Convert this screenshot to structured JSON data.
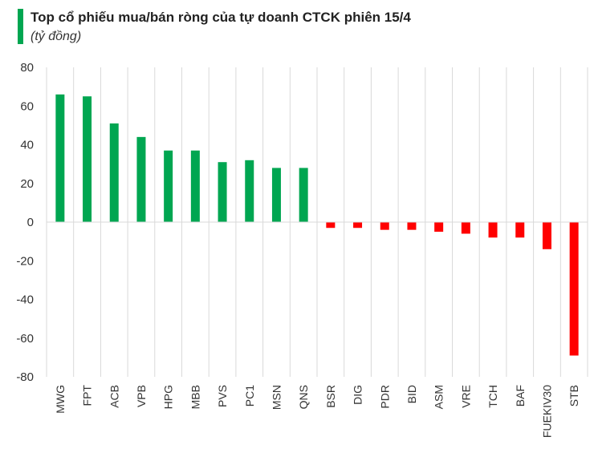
{
  "header": {
    "title": "Top cổ phiếu mua/bán ròng của tự doanh CTCK phiên 15/4",
    "subtitle": "(tỷ đồng)"
  },
  "colors": {
    "positive": "#00a651",
    "negative": "#ff0000",
    "accent": "#00a651",
    "grid": "#d9d9d9"
  },
  "chart_data": {
    "type": "bar",
    "title": "Top cổ phiếu mua/bán ròng của tự doanh CTCK phiên 15/4",
    "subtitle": "(tỷ đồng)",
    "xlabel": "",
    "ylabel": "",
    "ylim": [
      -80,
      80
    ],
    "yticks": [
      80,
      60,
      40,
      20,
      0,
      -20,
      -40,
      -60,
      -80
    ],
    "grid": "vertical category gridlines",
    "legend": "none",
    "categories": [
      "MWG",
      "FPT",
      "ACB",
      "VPB",
      "HPG",
      "MBB",
      "PVS",
      "PC1",
      "MSN",
      "QNS",
      "BSR",
      "DIG",
      "PDR",
      "BID",
      "ASM",
      "VRE",
      "TCH",
      "BAF",
      "FUEKIV30",
      "STB"
    ],
    "values": [
      66,
      65,
      51,
      44,
      37,
      37,
      31,
      32,
      28,
      28,
      -3,
      -3,
      -4,
      -4,
      -5,
      -6,
      -8,
      -8,
      -14,
      -69
    ]
  }
}
